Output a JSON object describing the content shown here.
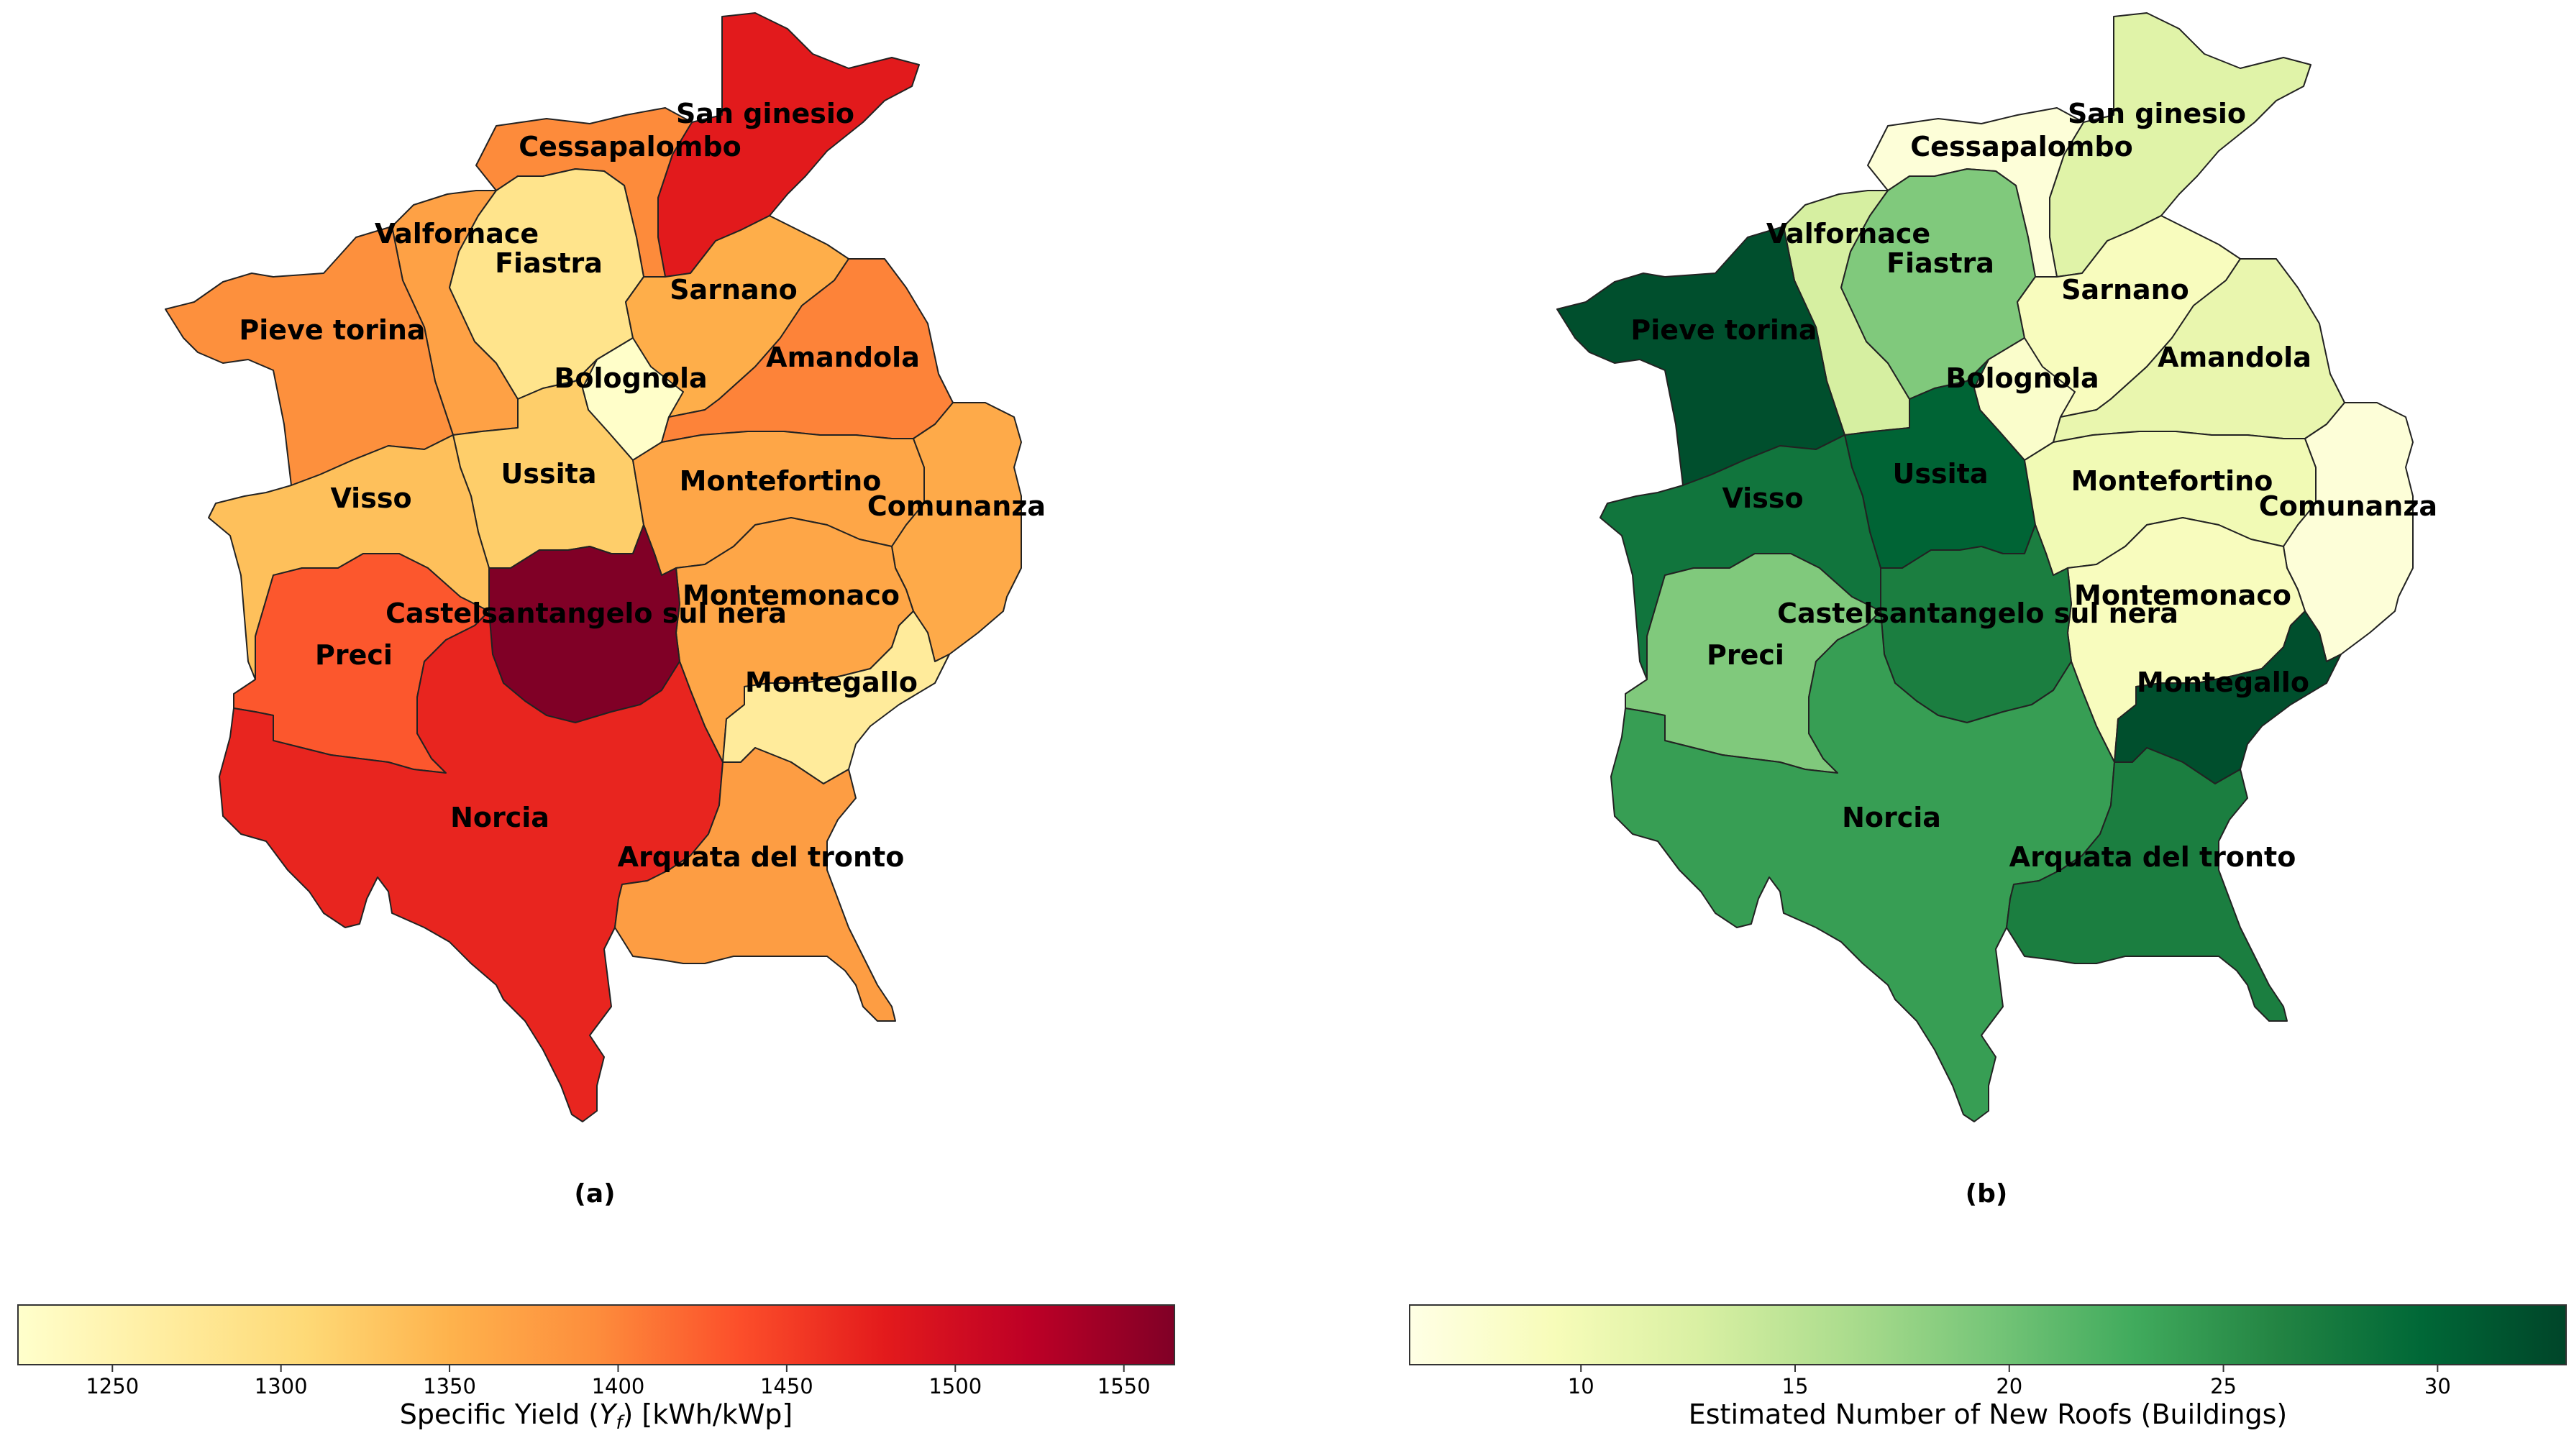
{
  "panels": [
    {
      "id": "a",
      "label": "(a)",
      "metric": "Specific Yield",
      "colorbar": {
        "title_prefix": "Specific Yield (",
        "title_var": "Y",
        "title_sub": "f",
        "title_suffix": ") [kWh/kWp]",
        "min": 1222,
        "max": 1565,
        "ticks": [
          "1250",
          "1300",
          "1350",
          "1400",
          "1450",
          "1500",
          "1550"
        ],
        "colormap": "YlOrRd"
      }
    },
    {
      "id": "b",
      "label": "(b)",
      "metric": "Estimated Number of New Roofs",
      "colorbar": {
        "title": "Estimated Number of New Roofs (Buildings)",
        "min": 6,
        "max": 33,
        "ticks": [
          "10",
          "15",
          "20",
          "25",
          "30"
        ],
        "colormap": "YlGn"
      }
    }
  ],
  "municipalities": [
    {
      "key": "san_ginesio",
      "name": "San ginesio",
      "yield": 1480,
      "roofs": 12
    },
    {
      "key": "cessapalombo",
      "name": "Cessapalombo",
      "yield": 1395,
      "roofs": 7
    },
    {
      "key": "valfornace",
      "name": "Valfornace",
      "yield": 1370,
      "roofs": 13
    },
    {
      "key": "fiastra",
      "name": "Fiastra",
      "yield": 1285,
      "roofs": 19
    },
    {
      "key": "pieve_torina",
      "name": "Pieve torina",
      "yield": 1390,
      "roofs": 32
    },
    {
      "key": "sarnano",
      "name": "Sarnano",
      "yield": 1355,
      "roofs": 9
    },
    {
      "key": "bolognola",
      "name": "Bolognola",
      "yield": 1225,
      "roofs": 8
    },
    {
      "key": "amandola",
      "name": "Amandola",
      "yield": 1400,
      "roofs": 11
    },
    {
      "key": "ussita",
      "name": "Ussita",
      "yield": 1320,
      "roofs": 30
    },
    {
      "key": "visso",
      "name": "Visso",
      "yield": 1335,
      "roofs": 28
    },
    {
      "key": "montefortino",
      "name": "Montefortino",
      "yield": 1365,
      "roofs": 10
    },
    {
      "key": "comunanza",
      "name": "Comunanza",
      "yield": 1360,
      "roofs": 7
    },
    {
      "key": "montemonaco",
      "name": "Montemonaco",
      "yield": 1365,
      "roofs": 9
    },
    {
      "key": "castelsantangelo",
      "name": "Castelsantangelo sul nera",
      "yield": 1565,
      "roofs": 27
    },
    {
      "key": "preci",
      "name": "Preci",
      "yield": 1430,
      "roofs": 19
    },
    {
      "key": "montegallo",
      "name": "Montegallo",
      "yield": 1270,
      "roofs": 32
    },
    {
      "key": "norcia",
      "name": "Norcia",
      "yield": 1470,
      "roofs": 24
    },
    {
      "key": "arquata",
      "name": "Arquata del tronto",
      "yield": 1375,
      "roofs": 27
    }
  ]
}
